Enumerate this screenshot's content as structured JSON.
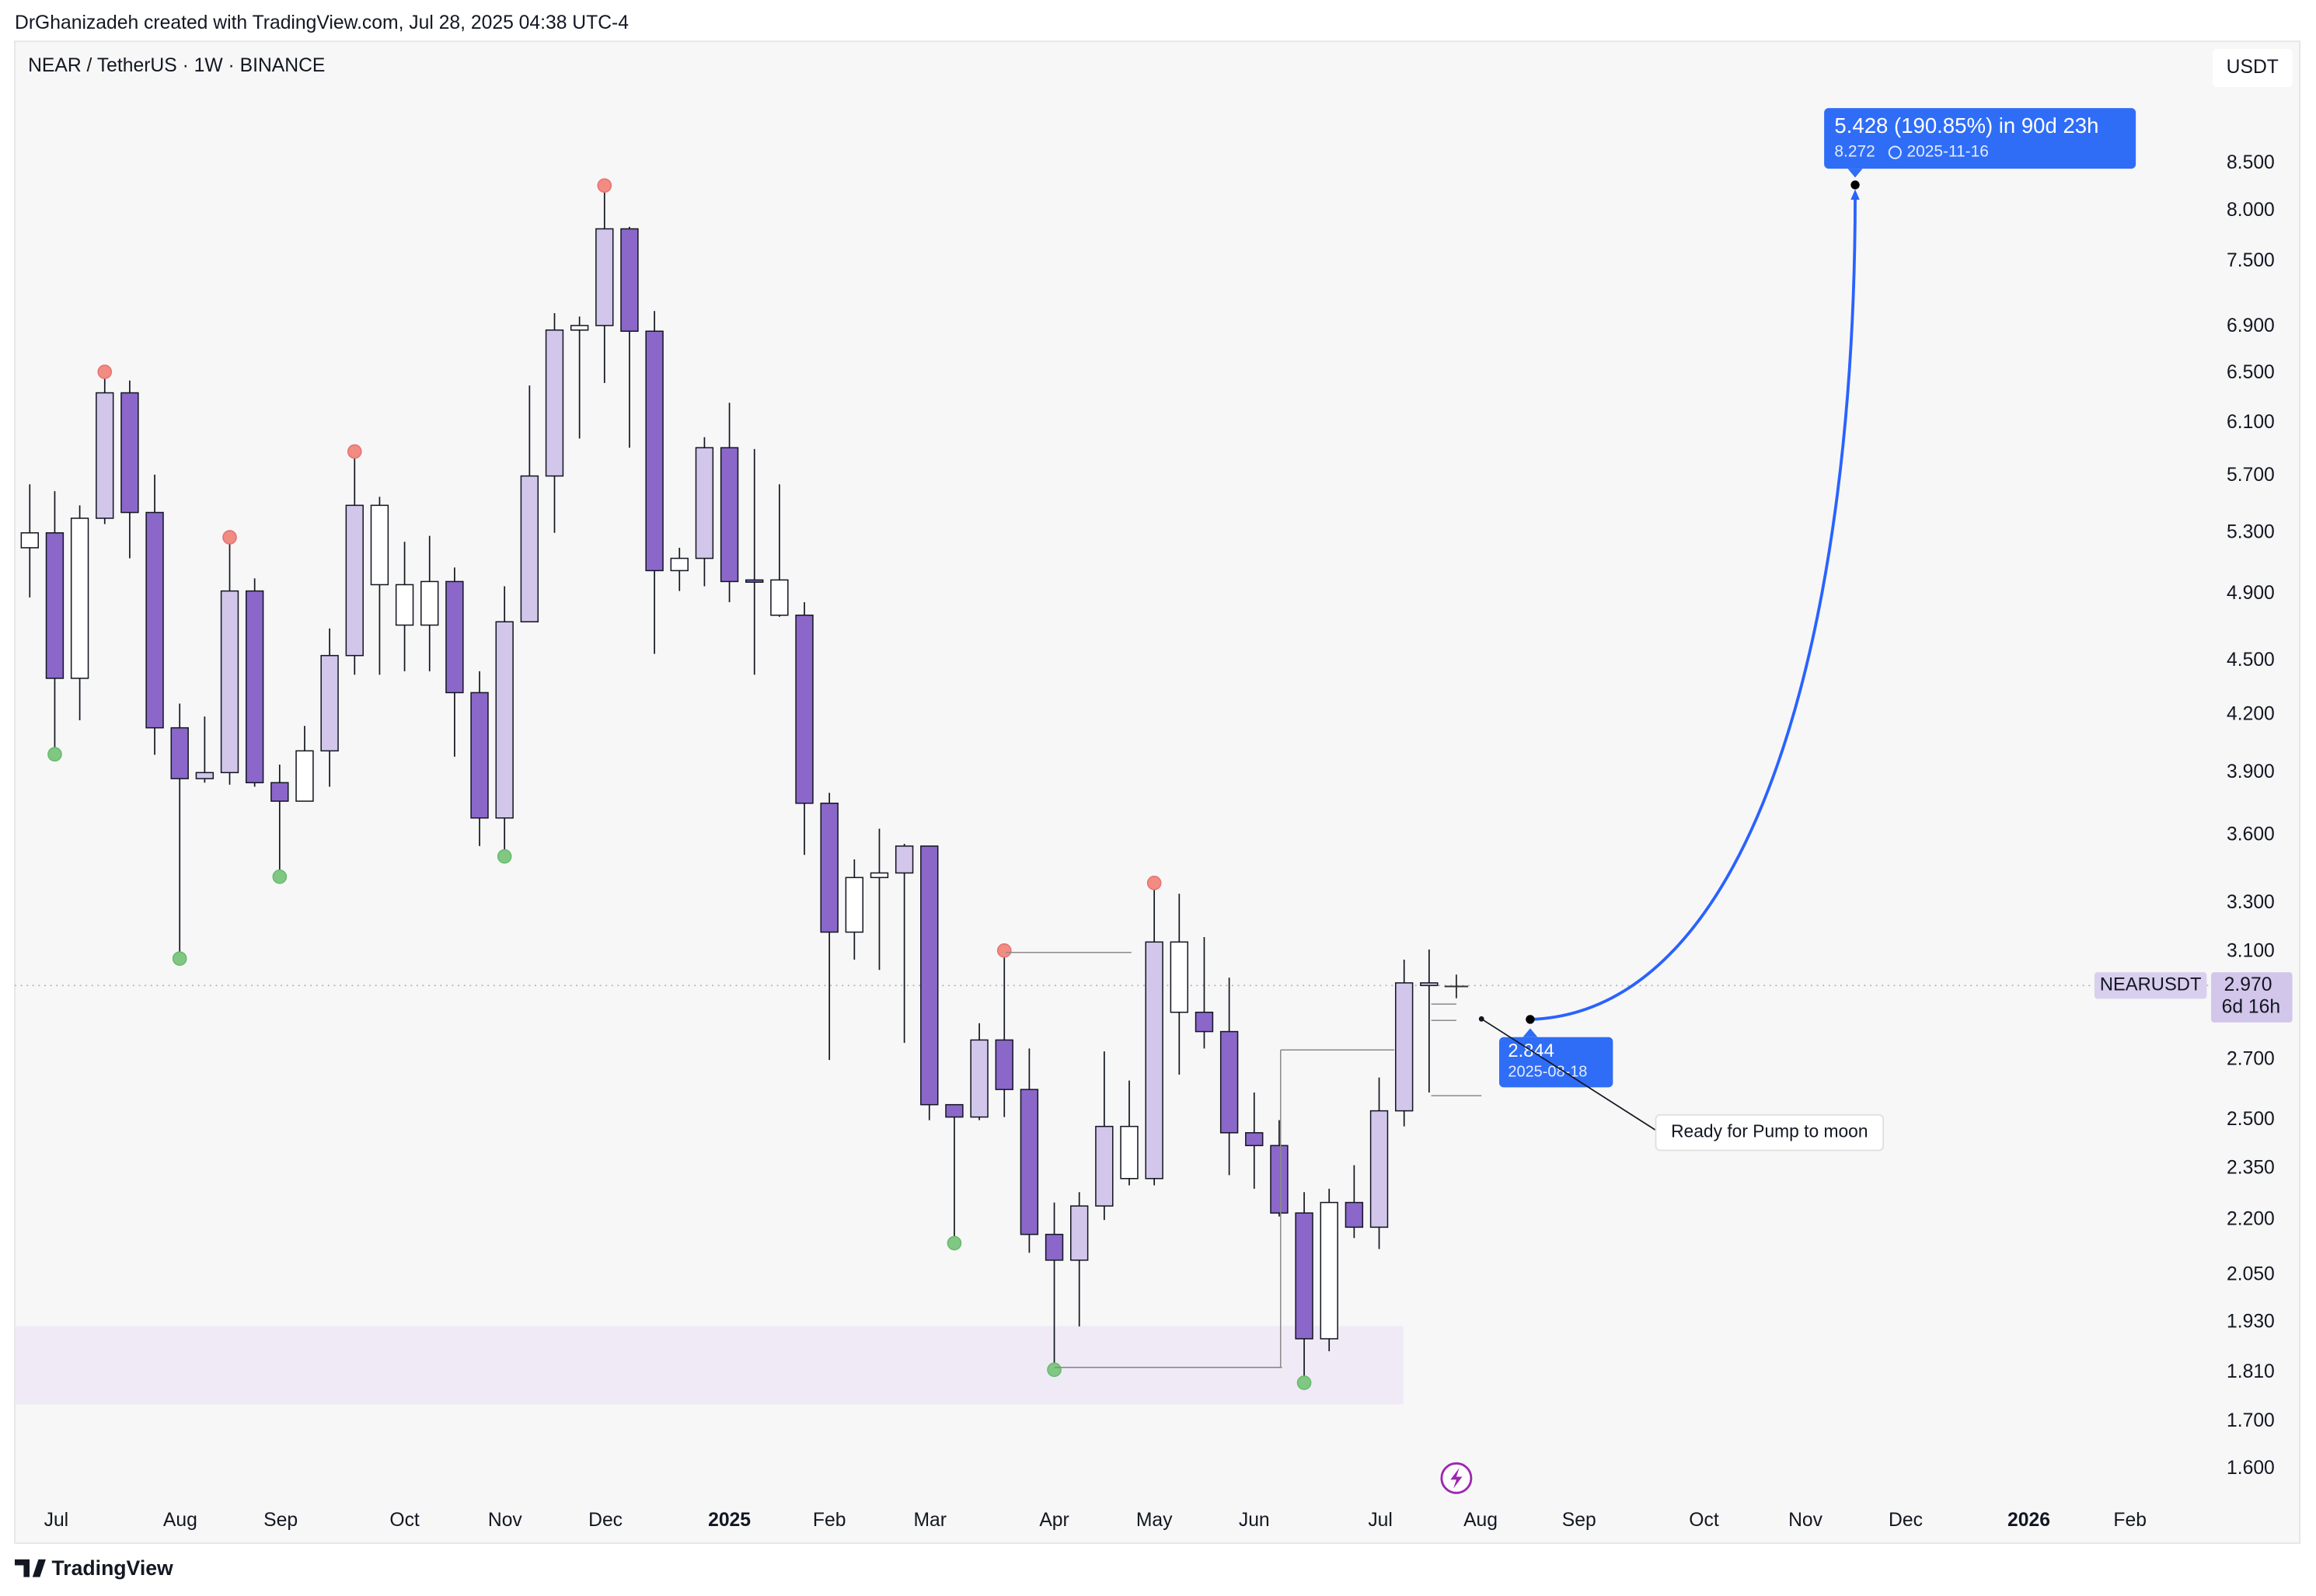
{
  "header": {
    "credit": "DrGhanizadeh created with TradingView.com, Jul 28, 2025 04:38 UTC-4",
    "footer": "TradingView"
  },
  "chart_data": {
    "type": "candlestick",
    "title": "NEAR / TetherUS · 1W · BINANCE",
    "currency": "USDT",
    "log_scale": true,
    "x": [
      0,
      1,
      2,
      3,
      4,
      5,
      6,
      7,
      8,
      9,
      10,
      11,
      12,
      13,
      14,
      15,
      16,
      17,
      18,
      19,
      20,
      21,
      22,
      23,
      24,
      25,
      26,
      27,
      28,
      29,
      30,
      31,
      32,
      33,
      34,
      35,
      36,
      37,
      38,
      39,
      40,
      41,
      42,
      43,
      44,
      45,
      46,
      47,
      48,
      49,
      50,
      51,
      52,
      53,
      54,
      55,
      56
    ],
    "open": [
      5.2,
      5.3,
      4.4,
      5.4,
      6.34,
      5.44,
      4.13,
      3.87,
      3.9,
      4.92,
      3.85,
      3.76,
      4.01,
      4.53,
      5.49,
      4.96,
      4.71,
      4.98,
      4.32,
      3.68,
      4.73,
      5.7,
      6.87,
      6.91,
      7.82,
      6.86,
      5.05,
      5.13,
      5.91,
      4.98,
      4.99,
      4.77,
      3.75,
      3.18,
      3.41,
      3.43,
      3.55,
      2.55,
      2.51,
      2.77,
      2.6,
      2.16,
      2.09,
      2.24,
      2.48,
      2.32,
      3.14,
      2.87,
      2.8,
      2.46,
      2.42,
      2.22,
      1.89,
      2.25,
      2.18,
      2.53,
      2.98
    ],
    "high": [
      5.64,
      5.59,
      5.49,
      6.5,
      6.44,
      5.71,
      4.26,
      4.19,
      5.26,
      5.0,
      3.94,
      4.14,
      4.69,
      5.87,
      5.55,
      5.24,
      5.28,
      5.07,
      4.44,
      4.95,
      6.4,
      7.02,
      6.99,
      8.25,
      7.84,
      7.04,
      5.2,
      5.99,
      6.26,
      5.9,
      5.64,
      4.85,
      3.8,
      3.49,
      3.63,
      3.56,
      3.55,
      2.55,
      2.83,
      3.1,
      2.74,
      2.25,
      2.28,
      2.73,
      2.63,
      3.38,
      3.34,
      3.16,
      3.0,
      2.59,
      2.5,
      2.28,
      2.29,
      2.36,
      2.64,
      3.07,
      3.11
    ],
    "low": [
      4.88,
      4.0,
      4.17,
      5.36,
      5.13,
      3.99,
      3.08,
      3.85,
      3.84,
      3.83,
      3.42,
      3.76,
      3.83,
      4.42,
      4.42,
      4.44,
      4.44,
      3.98,
      3.55,
      3.51,
      4.73,
      5.3,
      5.98,
      6.42,
      5.91,
      4.54,
      4.92,
      4.95,
      4.85,
      4.42,
      4.76,
      3.51,
      2.7,
      3.07,
      3.03,
      2.76,
      2.5,
      2.14,
      2.5,
      2.51,
      2.11,
      1.82,
      1.92,
      2.2,
      2.3,
      2.3,
      2.65,
      2.74,
      2.33,
      2.29,
      2.21,
      1.79,
      1.86,
      2.15,
      2.12,
      2.48,
      2.59
    ],
    "close": [
      5.3,
      4.4,
      5.4,
      6.34,
      5.44,
      4.13,
      3.87,
      3.9,
      4.92,
      3.85,
      3.76,
      4.01,
      4.53,
      5.49,
      4.96,
      4.71,
      4.98,
      4.32,
      3.68,
      4.73,
      5.7,
      6.87,
      6.91,
      7.82,
      6.86,
      5.05,
      5.13,
      5.91,
      4.98,
      4.99,
      4.77,
      3.75,
      3.18,
      3.41,
      3.43,
      3.55,
      2.55,
      2.51,
      2.77,
      2.6,
      2.16,
      2.09,
      2.24,
      2.48,
      2.32,
      3.14,
      2.87,
      2.8,
      2.46,
      2.42,
      2.22,
      1.89,
      2.25,
      2.18,
      2.53,
      2.98,
      2.97
    ],
    "colors": [
      "#ffffff",
      "#8b67c9",
      "#ffffff",
      "#d2c6ea",
      "#8b67c9",
      "#8b67c9",
      "#8b67c9",
      "#d2c6ea",
      "#d2c6ea",
      "#8b67c9",
      "#8b67c9",
      "#ffffff",
      "#d2c6ea",
      "#d2c6ea",
      "#ffffff",
      "#ffffff",
      "#ffffff",
      "#8b67c9",
      "#8b67c9",
      "#d2c6ea",
      "#d2c6ea",
      "#d2c6ea",
      "#ffffff",
      "#d2c6ea",
      "#8b67c9",
      "#8b67c9",
      "#ffffff",
      "#d2c6ea",
      "#8b67c9",
      "#8b67c9",
      "#ffffff",
      "#8b67c9",
      "#8b67c9",
      "#ffffff",
      "#ffffff",
      "#d2c6ea",
      "#8b67c9",
      "#8b67c9",
      "#d2c6ea",
      "#8b67c9",
      "#8b67c9",
      "#8b67c9",
      "#d2c6ea",
      "#d2c6ea",
      "#ffffff",
      "#d2c6ea",
      "#ffffff",
      "#8b67c9",
      "#8b67c9",
      "#8b67c9",
      "#8b67c9",
      "#8b67c9",
      "#ffffff",
      "#8b67c9",
      "#d2c6ea",
      "#d2c6ea",
      "#d2c6ea"
    ],
    "pivot_highs": [
      3,
      8,
      13,
      23,
      39,
      45
    ],
    "pivot_lows": [
      1,
      6,
      10,
      19,
      37,
      41,
      51
    ],
    "xlim": [
      -0.6,
      87
    ],
    "xticks": [
      {
        "value": 1.06,
        "label": "Jul"
      },
      {
        "value": 6.02,
        "label": "Aug"
      },
      {
        "value": 10.04,
        "label": "Sep"
      },
      {
        "value": 15,
        "label": "Oct"
      },
      {
        "value": 19.02,
        "label": "Nov"
      },
      {
        "value": 23.04,
        "label": "Dec"
      },
      {
        "value": 28,
        "label": "2025"
      },
      {
        "value": 32,
        "label": "Feb"
      },
      {
        "value": 36.03,
        "label": "Mar"
      },
      {
        "value": 41,
        "label": "Apr"
      },
      {
        "value": 45,
        "label": "May"
      },
      {
        "value": 49,
        "label": "Jun"
      },
      {
        "value": 54.05,
        "label": "Jul"
      },
      {
        "value": 58.06,
        "label": "Aug"
      },
      {
        "value": 62,
        "label": "Sep"
      },
      {
        "value": 67,
        "label": "Oct"
      },
      {
        "value": 71.06,
        "label": "Nov"
      },
      {
        "value": 75.07,
        "label": "Dec"
      },
      {
        "value": 80,
        "label": "2026"
      },
      {
        "value": 84.05,
        "label": "Feb"
      }
    ],
    "ylim": [
      1.54,
      9.94
    ],
    "yticks": [
      {
        "value": 8.5,
        "label": "8.500"
      },
      {
        "value": 8,
        "label": "8.000"
      },
      {
        "value": 7.5,
        "label": "7.500"
      },
      {
        "value": 6.9,
        "label": "6.900"
      },
      {
        "value": 6.5,
        "label": "6.500"
      },
      {
        "value": 6.1,
        "label": "6.100"
      },
      {
        "value": 5.7,
        "label": "5.700"
      },
      {
        "value": 5.3,
        "label": "5.300"
      },
      {
        "value": 4.9,
        "label": "4.900"
      },
      {
        "value": 4.5,
        "label": "4.500"
      },
      {
        "value": 4.2,
        "label": "4.200"
      },
      {
        "value": 3.9,
        "label": "3.900"
      },
      {
        "value": 3.6,
        "label": "3.600"
      },
      {
        "value": 3.3,
        "label": "3.300"
      },
      {
        "value": 3.1,
        "label": "3.100"
      },
      {
        "value": 2.7,
        "label": "2.700"
      },
      {
        "value": 2.5,
        "label": "2.500"
      },
      {
        "value": 2.35,
        "label": "2.350"
      },
      {
        "value": 2.2,
        "label": "2.200"
      },
      {
        "value": 2.05,
        "label": "2.050"
      },
      {
        "value": 1.93,
        "label": "1.930"
      },
      {
        "value": 1.81,
        "label": "1.810"
      },
      {
        "value": 1.7,
        "label": "1.700"
      },
      {
        "value": 1.6,
        "label": "1.600"
      }
    ],
    "price_tag": {
      "symbol": "NEARUSDT",
      "value": 2.97,
      "label": "2.970",
      "countdown": "6d 16h"
    },
    "projection": {
      "start": {
        "value": 2.844,
        "date": "2025-08-18"
      },
      "end": {
        "value": 8.272,
        "date": "2025-11-16",
        "summary": "5.428 (190.85%) in 90d 23h"
      }
    },
    "annotation": "Ready for Pump to moon"
  }
}
